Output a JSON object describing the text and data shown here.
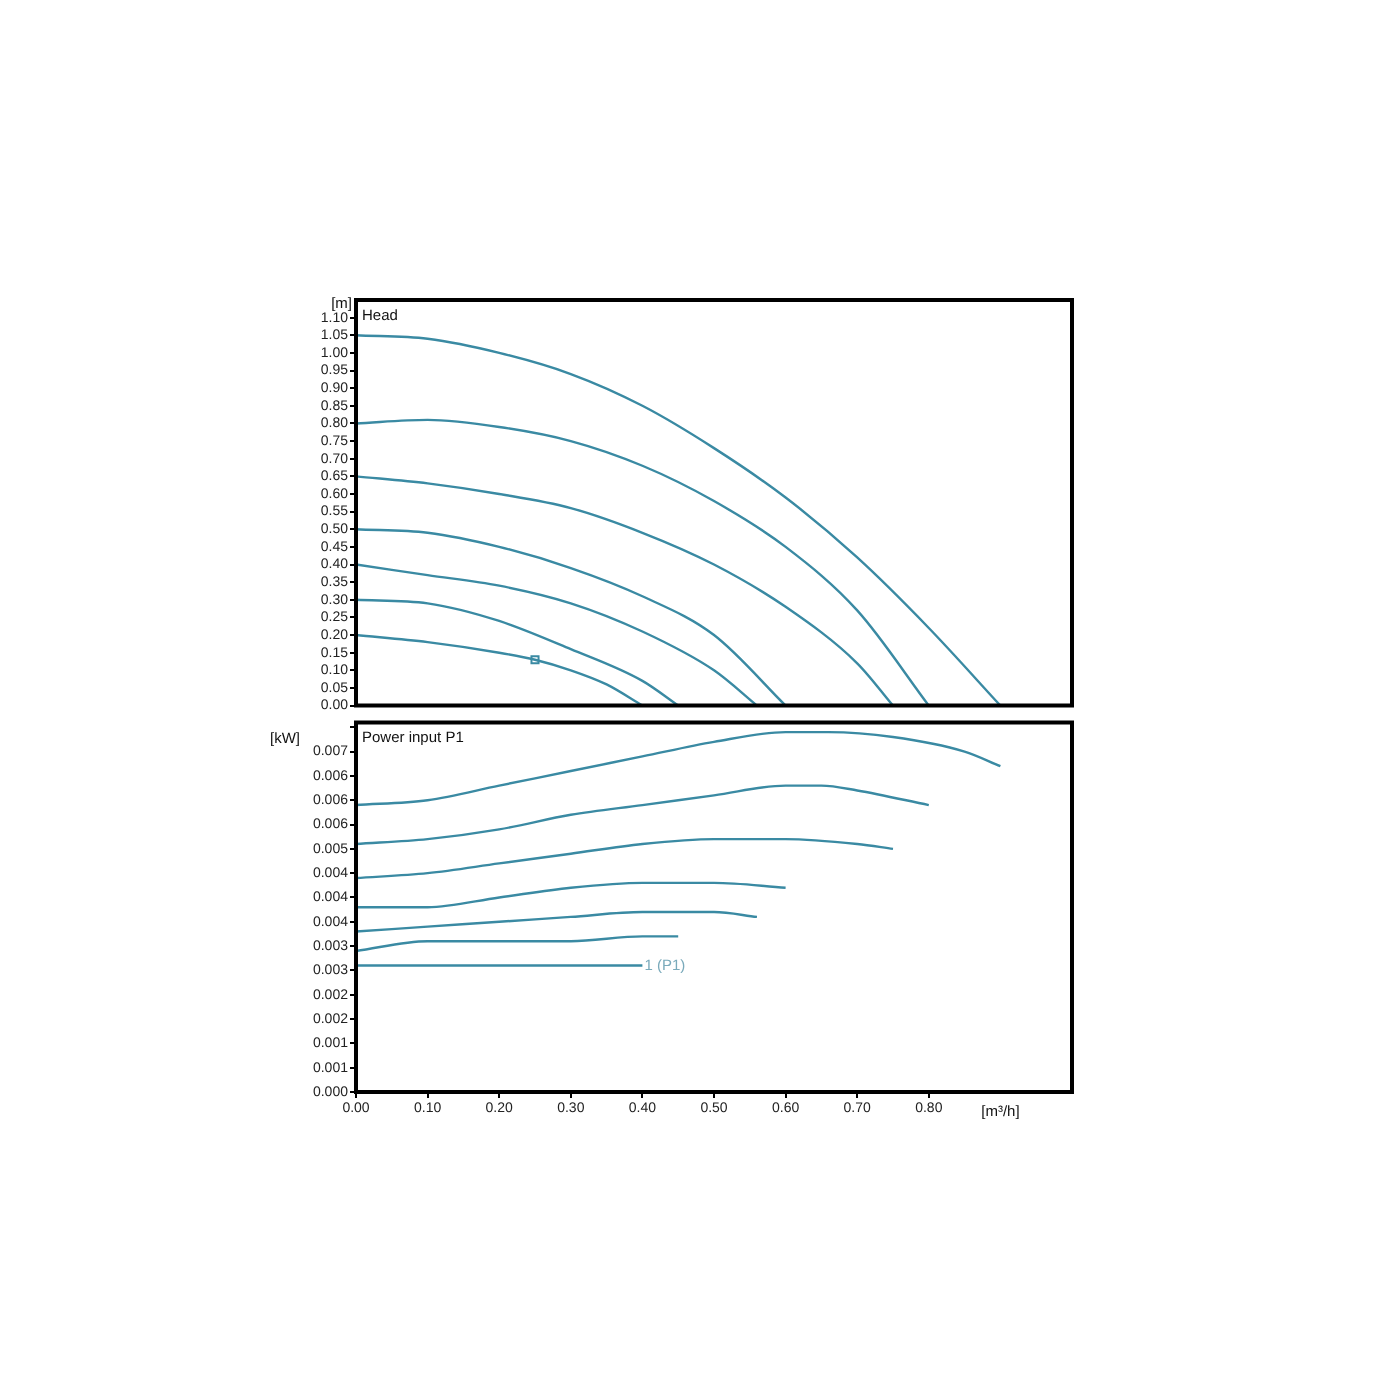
{
  "chart_data": [
    {
      "type": "line",
      "title": "Head",
      "ylabel": "[m]",
      "tick_labels": "y",
      "grid": false,
      "legend": false,
      "line_style": "solid",
      "xlim": [
        0,
        1.0
      ],
      "ylim": [
        0,
        1.15
      ],
      "yticks": [
        {
          "value": 0,
          "label": "0.00"
        },
        0.05,
        {
          "value": 0.1,
          "label": "0.10"
        },
        0.15,
        {
          "value": 0.2,
          "label": "0.20"
        },
        0.25,
        {
          "value": 0.3,
          "label": "0.30"
        },
        0.35,
        {
          "value": 0.4,
          "label": "0.40"
        },
        0.45,
        {
          "value": 0.5,
          "label": "0.50"
        },
        0.55,
        {
          "value": 0.6,
          "label": "0.60"
        },
        0.65,
        {
          "value": 0.7,
          "label": "0.70"
        },
        0.75,
        {
          "value": 0.8,
          "label": "0.80"
        },
        0.85,
        {
          "value": 0.9,
          "label": "0.90"
        },
        0.95,
        {
          "value": 1.0,
          "label": "1.00"
        },
        1.05,
        {
          "value": 1.1,
          "label": "1.10"
        }
      ],
      "series": [
        {
          "color": "#3a8aa3",
          "x": [
            0,
            0.1,
            0.2,
            0.3,
            0.4,
            0.5,
            0.6,
            0.7,
            0.8,
            0.9
          ],
          "values": [
            1.05,
            1.04,
            1.0,
            0.94,
            0.85,
            0.73,
            0.59,
            0.42,
            0.22,
            0
          ]
        },
        {
          "color": "#3a8aa3",
          "x": [
            0,
            0.1,
            0.2,
            0.3,
            0.4,
            0.5,
            0.6,
            0.7,
            0.8
          ],
          "values": [
            0.8,
            0.81,
            0.79,
            0.75,
            0.68,
            0.58,
            0.45,
            0.27,
            0
          ]
        },
        {
          "color": "#3a8aa3",
          "x": [
            0,
            0.1,
            0.2,
            0.3,
            0.4,
            0.5,
            0.6,
            0.7,
            0.75
          ],
          "values": [
            0.65,
            0.63,
            0.6,
            0.56,
            0.49,
            0.4,
            0.28,
            0.12,
            0
          ]
        },
        {
          "color": "#3a8aa3",
          "x": [
            0,
            0.1,
            0.2,
            0.3,
            0.4,
            0.5,
            0.6
          ],
          "values": [
            0.5,
            0.49,
            0.45,
            0.39,
            0.31,
            0.2,
            0
          ]
        },
        {
          "color": "#3a8aa3",
          "x": [
            0,
            0.1,
            0.2,
            0.3,
            0.4,
            0.5,
            0.56
          ],
          "values": [
            0.4,
            0.37,
            0.34,
            0.29,
            0.21,
            0.1,
            0
          ]
        },
        {
          "color": "#3a8aa3",
          "x": [
            0,
            0.1,
            0.2,
            0.3,
            0.4,
            0.45
          ],
          "values": [
            0.3,
            0.29,
            0.24,
            0.16,
            0.07,
            0
          ]
        },
        {
          "color": "#3a8aa3",
          "x": [
            0,
            0.1,
            0.2,
            0.25,
            0.3,
            0.35,
            0.4
          ],
          "values": [
            0.2,
            0.18,
            0.15,
            0.13,
            0.1,
            0.06,
            0
          ]
        },
        {
          "type": "scatter",
          "color": "#3a8aa3",
          "marker": "square",
          "x": [
            0.25
          ],
          "values": [
            0.13
          ]
        }
      ]
    },
    {
      "type": "line",
      "title": "Power input P1",
      "ylabel": "[kW]",
      "xlabel": "[m³/h]",
      "grid": false,
      "legend": false,
      "line_style": "solid",
      "xlim": [
        0,
        1.0
      ],
      "xticks": [
        {
          "value": 0,
          "label": "0.00"
        },
        {
          "value": 0.1,
          "label": "0.10"
        },
        {
          "value": 0.2,
          "label": "0.20"
        },
        {
          "value": 0.3,
          "label": "0.30"
        },
        {
          "value": 0.4,
          "label": "0.40"
        },
        {
          "value": 0.5,
          "label": "0.50"
        },
        {
          "value": 0.6,
          "label": "0.60"
        },
        {
          "value": 0.7,
          "label": "0.70"
        },
        {
          "value": 0.8,
          "label": "0.80"
        }
      ],
      "ylim": [
        0,
        0.0076
      ],
      "yticks": [
        {
          "value": 0,
          "label": "0.000"
        },
        {
          "value": 0.0005,
          "label": "0.001"
        },
        {
          "value": 0.001,
          "label": "0.001"
        },
        {
          "value": 0.0015,
          "label": "0.002"
        },
        {
          "value": 0.002,
          "label": "0.002"
        },
        {
          "value": 0.0025,
          "label": "0.003"
        },
        {
          "value": 0.003,
          "label": "0.003"
        },
        {
          "value": 0.0035,
          "label": "0.004"
        },
        {
          "value": 0.004,
          "label": "0.004"
        },
        {
          "value": 0.0045,
          "label": "0.004"
        },
        {
          "value": 0.005,
          "label": "0.005"
        },
        {
          "value": 0.0055,
          "label": "0.006"
        },
        {
          "value": 0.006,
          "label": "0.006"
        },
        {
          "value": 0.0065,
          "label": "0.006"
        },
        {
          "value": 0.007,
          "label": "0.007"
        },
        {
          "value": 0.0075,
          "label": null
        }
      ],
      "annotations": [
        {
          "text": "1 (P1)",
          "x": 0.4,
          "y": 0.0026
        }
      ],
      "series": [
        {
          "color": "#3a8aa3",
          "x": [
            0,
            0.1,
            0.2,
            0.3,
            0.4,
            0.5,
            0.6,
            0.66,
            0.75,
            0.85,
            0.9
          ],
          "values": [
            0.0059,
            0.006,
            0.0063,
            0.0066,
            0.0069,
            0.0072,
            0.0074,
            0.0074,
            0.0073,
            0.007,
            0.0067
          ]
        },
        {
          "color": "#3a8aa3",
          "x": [
            0,
            0.1,
            0.2,
            0.3,
            0.4,
            0.5,
            0.6,
            0.65,
            0.7,
            0.8
          ],
          "values": [
            0.0051,
            0.0052,
            0.0054,
            0.0057,
            0.0059,
            0.0061,
            0.0063,
            0.0063,
            0.0062,
            0.0059
          ]
        },
        {
          "color": "#3a8aa3",
          "x": [
            0,
            0.1,
            0.2,
            0.3,
            0.4,
            0.5,
            0.6,
            0.7,
            0.75
          ],
          "values": [
            0.0044,
            0.0045,
            0.0047,
            0.0049,
            0.0051,
            0.0052,
            0.0052,
            0.0051,
            0.005
          ]
        },
        {
          "color": "#3a8aa3",
          "x": [
            0,
            0.1,
            0.2,
            0.3,
            0.4,
            0.5,
            0.6
          ],
          "values": [
            0.0038,
            0.0038,
            0.004,
            0.0042,
            0.0043,
            0.0043,
            0.0042
          ]
        },
        {
          "color": "#3a8aa3",
          "x": [
            0,
            0.1,
            0.2,
            0.3,
            0.4,
            0.5,
            0.56
          ],
          "values": [
            0.0033,
            0.0034,
            0.0035,
            0.0036,
            0.0037,
            0.0037,
            0.0036
          ]
        },
        {
          "color": "#3a8aa3",
          "x": [
            0,
            0.1,
            0.2,
            0.3,
            0.4,
            0.45
          ],
          "values": [
            0.0029,
            0.0031,
            0.0031,
            0.0031,
            0.0032,
            0.0032
          ]
        },
        {
          "color": "#3a8aa3",
          "x": [
            0,
            0.1,
            0.2,
            0.3,
            0.4
          ],
          "values": [
            0.0026,
            0.0026,
            0.0026,
            0.0026,
            0.0026
          ]
        }
      ]
    }
  ]
}
